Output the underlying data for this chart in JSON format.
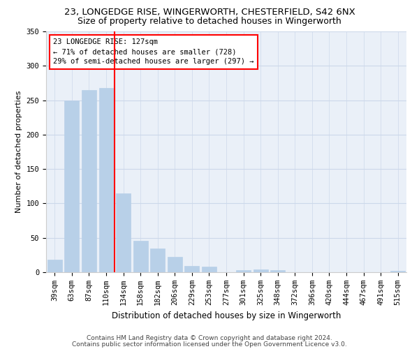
{
  "title1": "23, LONGEDGE RISE, WINGERWORTH, CHESTERFIELD, S42 6NX",
  "title2": "Size of property relative to detached houses in Wingerworth",
  "xlabel": "Distribution of detached houses by size in Wingerworth",
  "ylabel": "Number of detached properties",
  "bar_labels": [
    "39sqm",
    "63sqm",
    "87sqm",
    "110sqm",
    "134sqm",
    "158sqm",
    "182sqm",
    "206sqm",
    "229sqm",
    "253sqm",
    "277sqm",
    "301sqm",
    "325sqm",
    "348sqm",
    "372sqm",
    "396sqm",
    "420sqm",
    "444sqm",
    "467sqm",
    "491sqm",
    "515sqm"
  ],
  "bar_values": [
    18,
    250,
    265,
    268,
    115,
    46,
    34,
    22,
    9,
    8,
    0,
    3,
    4,
    3,
    0,
    0,
    0,
    0,
    0,
    0,
    2
  ],
  "bar_color": "#b8d0e8",
  "bar_edgecolor": "#b8d0e8",
  "grid_color": "#ccd8ea",
  "subject_line_color": "red",
  "annotation_text": "23 LONGEDGE RISE: 127sqm\n← 71% of detached houses are smaller (728)\n29% of semi-detached houses are larger (297) →",
  "annotation_box_color": "red",
  "ylim": [
    0,
    350
  ],
  "yticks": [
    0,
    50,
    100,
    150,
    200,
    250,
    300,
    350
  ],
  "footnote1": "Contains HM Land Registry data © Crown copyright and database right 2024.",
  "footnote2": "Contains public sector information licensed under the Open Government Licence v3.0.",
  "bg_color": "#eaf0f8",
  "title1_fontsize": 9.5,
  "title2_fontsize": 9,
  "xlabel_fontsize": 8.5,
  "ylabel_fontsize": 8,
  "tick_fontsize": 7.5,
  "annotation_fontsize": 7.5,
  "footnote_fontsize": 6.5
}
